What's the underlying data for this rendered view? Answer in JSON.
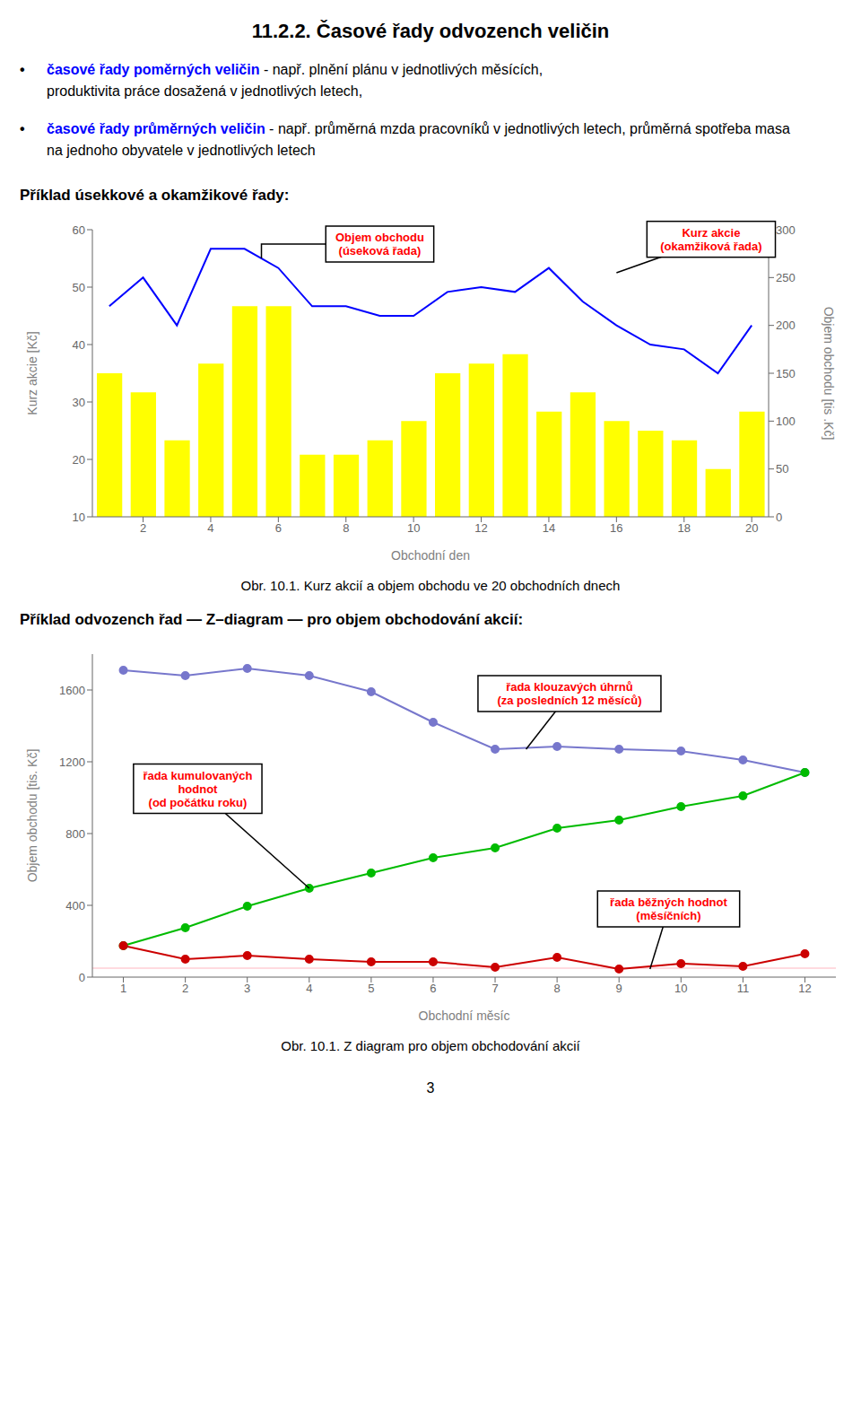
{
  "title": "11.2.2. Časové řady odvozench veličin",
  "bullet_mark": "•",
  "bullets": [
    {
      "bold": "časové řady poměrných veličin",
      "color": "blue",
      "lines": [
        " - např. plnění plánu v jednotlivých měsících,",
        "produktivita práce dosažená v jednotlivých letech,"
      ]
    },
    {
      "bold": "časové řady průměrných veličin",
      "color": "blue",
      "lines": [
        " - např. průměrná mzda pracovníků v jednotlivých letech, průměrná spotřeba masa",
        "na jednoho obyvatele v jednotlivých letech"
      ]
    }
  ],
  "chart_data": [
    {
      "type": "bar",
      "section": "Příklad úsekkové a okamžikové řady:",
      "caption": "Obr. 10.1. Kurz akcií a objem obchodu ve 20 obchodních dnech",
      "x": [
        1,
        2,
        3,
        4,
        5,
        6,
        7,
        8,
        9,
        10,
        11,
        12,
        13,
        14,
        15,
        16,
        17,
        18,
        19,
        20
      ],
      "xlim": [
        0.5,
        20.5
      ],
      "xticks": [
        2,
        4,
        6,
        8,
        10,
        12,
        14,
        16,
        18,
        20
      ],
      "xlabel": "Obchodní den",
      "ylabel": "Kurz akcie [Kč]",
      "ylim": [
        10,
        60
      ],
      "yticks": [
        10,
        20,
        30,
        40,
        50,
        60
      ],
      "y2label": "Objem obchodu [tis .Kč]",
      "y2lim": [
        0,
        300
      ],
      "y2ticks": [
        0,
        50,
        100,
        150,
        200,
        250,
        300
      ],
      "grid": false,
      "series": [
        {
          "type": "bar",
          "axis": "y2",
          "color": "#FFFF00",
          "values": [
            150,
            130,
            80,
            160,
            220,
            220,
            65,
            65,
            80,
            100,
            150,
            160,
            170,
            110,
            130,
            100,
            90,
            80,
            50,
            110
          ]
        },
        {
          "type": "line",
          "axis": "y2",
          "color": "#0000FF",
          "values": [
            220,
            250,
            200,
            280,
            280,
            260,
            220,
            220,
            210,
            210,
            235,
            240,
            235,
            260,
            225,
            200,
            180,
            175,
            150,
            200
          ]
        }
      ],
      "annotations": [
        {
          "text": "Objem obchodu\n(úseková řada)",
          "color": "red"
        },
        {
          "text": "Kurz akcie\n(okamžiková řada)",
          "color": "red"
        }
      ]
    },
    {
      "type": "line",
      "section": "Příklad odvozench řad — Z–diagram — pro objem obchodování akcií:",
      "caption": "Obr. 10.1. Z diagram pro objem obchodování akcií",
      "x": [
        1,
        2,
        3,
        4,
        5,
        6,
        7,
        8,
        9,
        10,
        11,
        12
      ],
      "xlim": [
        0.5,
        12.5
      ],
      "xticks": [
        1,
        2,
        3,
        4,
        5,
        6,
        7,
        8,
        9,
        10,
        11,
        12
      ],
      "xlabel": "Obchodní měsíc",
      "ylabel": "Objem obchodu [tis. Kč]",
      "ylim": [
        0,
        1800
      ],
      "yticks": [
        0,
        400,
        800,
        1200,
        1600
      ],
      "grid": false,
      "series": [
        {
          "type": "line",
          "color": "#7777CC",
          "marker": "o",
          "values": [
            1710,
            1680,
            1720,
            1680,
            1590,
            1420,
            1270,
            1285,
            1270,
            1260,
            1210,
            1140
          ]
        },
        {
          "type": "line",
          "color": "#00BB00",
          "marker": "o",
          "values": [
            175,
            275,
            395,
            495,
            580,
            665,
            720,
            830,
            875,
            950,
            1010,
            1140
          ]
        },
        {
          "type": "line",
          "color": "#CC0000",
          "marker": "o",
          "values": [
            175,
            100,
            120,
            100,
            85,
            85,
            55,
            110,
            45,
            75,
            60,
            130
          ]
        }
      ],
      "reference_lines": [
        {
          "y": 50,
          "color": "#FFB6C1"
        }
      ],
      "annotations": [
        {
          "text": "řada klouzavých úhrnů\n(za posledních 12 měsíců)",
          "color": "red"
        },
        {
          "text": "řada kumulovaných\nhodnot\n(od počátku roku)",
          "color": "red"
        },
        {
          "text": "řada běžných hodnot\n(měsíčních)",
          "color": "red"
        }
      ]
    }
  ],
  "page_number": "3"
}
